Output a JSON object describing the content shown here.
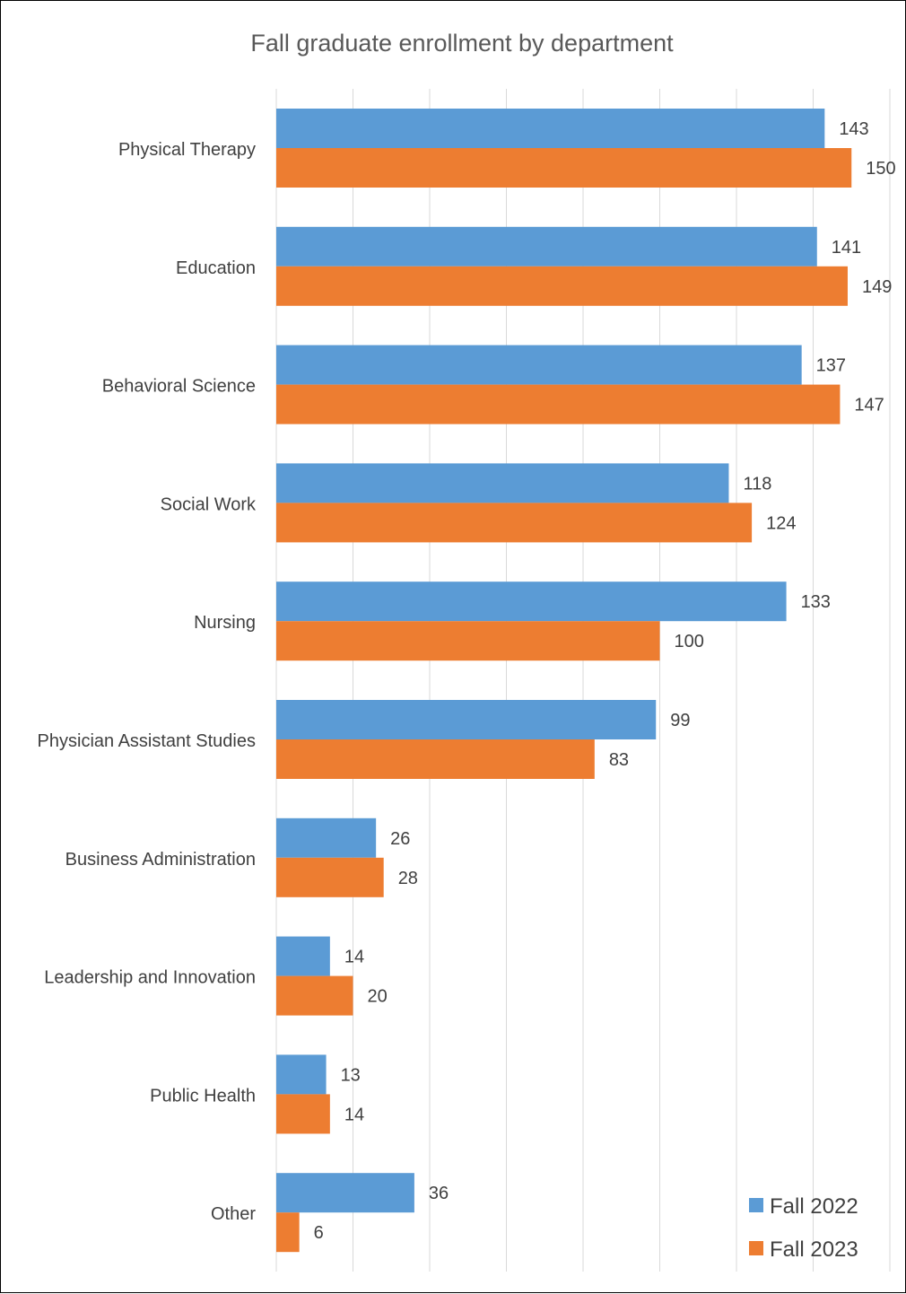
{
  "chart_data": {
    "type": "bar",
    "orientation": "horizontal",
    "title": "Fall graduate enrollment by department",
    "xlabel": "",
    "ylabel": "",
    "xlim": [
      0,
      160
    ],
    "grid": true,
    "legend_position": "bottom-right",
    "categories": [
      "Physical Therapy",
      "Education",
      "Behavioral Science",
      "Social Work",
      "Nursing",
      "Physician Assistant Studies",
      "Business Administration",
      "Leadership and Innovation",
      "Public Health",
      "Other"
    ],
    "series": [
      {
        "name": "Fall 2022",
        "color": "#5B9BD5",
        "values": [
          143,
          141,
          137,
          118,
          133,
          99,
          26,
          14,
          13,
          36
        ]
      },
      {
        "name": "Fall 2023",
        "color": "#ED7D31",
        "values": [
          150,
          149,
          147,
          124,
          100,
          83,
          28,
          20,
          14,
          6
        ]
      }
    ]
  }
}
